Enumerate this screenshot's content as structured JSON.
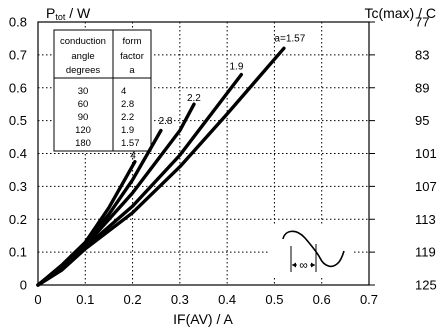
{
  "chart_data": {
    "type": "line",
    "xlabel": "IF(AV) / A",
    "ylabel_main": "P",
    "ylabel_sub": "tot",
    "ylabel_unit": " / W",
    "y2label": "Tc(max) / C",
    "xlim": [
      0,
      0.7
    ],
    "ylim": [
      0,
      0.8
    ],
    "grid": true,
    "x_ticks": [
      "0",
      "0.1",
      "0.2",
      "0.3",
      "0.4",
      "0.5",
      "0.6",
      "0.7"
    ],
    "y_ticks": [
      "0",
      "0.1",
      "0.2",
      "0.3",
      "0.4",
      "0.5",
      "0.6",
      "0.7",
      "0.8"
    ],
    "y2_ticks": [
      "125",
      "119",
      "113",
      "107",
      "101",
      "95",
      "89",
      "83",
      "77"
    ],
    "series": [
      {
        "name": "4",
        "x": [
          0,
          0.05,
          0.1,
          0.15,
          0.205
        ],
        "y": [
          0,
          0.06,
          0.13,
          0.235,
          0.375
        ]
      },
      {
        "name": "2.8",
        "x": [
          0,
          0.05,
          0.1,
          0.15,
          0.2,
          0.26
        ],
        "y": [
          0,
          0.055,
          0.125,
          0.215,
          0.32,
          0.47
        ]
      },
      {
        "name": "2.2",
        "x": [
          0,
          0.05,
          0.1,
          0.2,
          0.3,
          0.33
        ],
        "y": [
          0,
          0.055,
          0.12,
          0.28,
          0.47,
          0.55
        ]
      },
      {
        "name": "1.9",
        "x": [
          0,
          0.05,
          0.1,
          0.2,
          0.3,
          0.43
        ],
        "y": [
          0,
          0.05,
          0.115,
          0.24,
          0.395,
          0.64
        ]
      },
      {
        "name": "a=1.57",
        "x": [
          0,
          0.05,
          0.1,
          0.2,
          0.3,
          0.4,
          0.52
        ],
        "y": [
          0,
          0.045,
          0.11,
          0.22,
          0.36,
          0.52,
          0.72
        ]
      }
    ],
    "label_positions": [
      {
        "series": "4",
        "x": 0.195,
        "y": 0.385
      },
      {
        "series": "2.8",
        "x": 0.255,
        "y": 0.49
      },
      {
        "series": "2.2",
        "x": 0.315,
        "y": 0.56
      },
      {
        "series": "1.9",
        "x": 0.405,
        "y": 0.655
      },
      {
        "series": "a=1.57",
        "x": 0.5,
        "y": 0.74
      }
    ],
    "table": {
      "header_col1": [
        "conduction",
        "angle",
        "degrees"
      ],
      "header_col2": [
        "form",
        "factor",
        "a"
      ],
      "rows": [
        [
          "30",
          "4"
        ],
        [
          "60",
          "2.8"
        ],
        [
          "90",
          "2.2"
        ],
        [
          "120",
          "1.9"
        ],
        [
          "180",
          "1.57"
        ]
      ]
    },
    "inset_label": "∞"
  }
}
